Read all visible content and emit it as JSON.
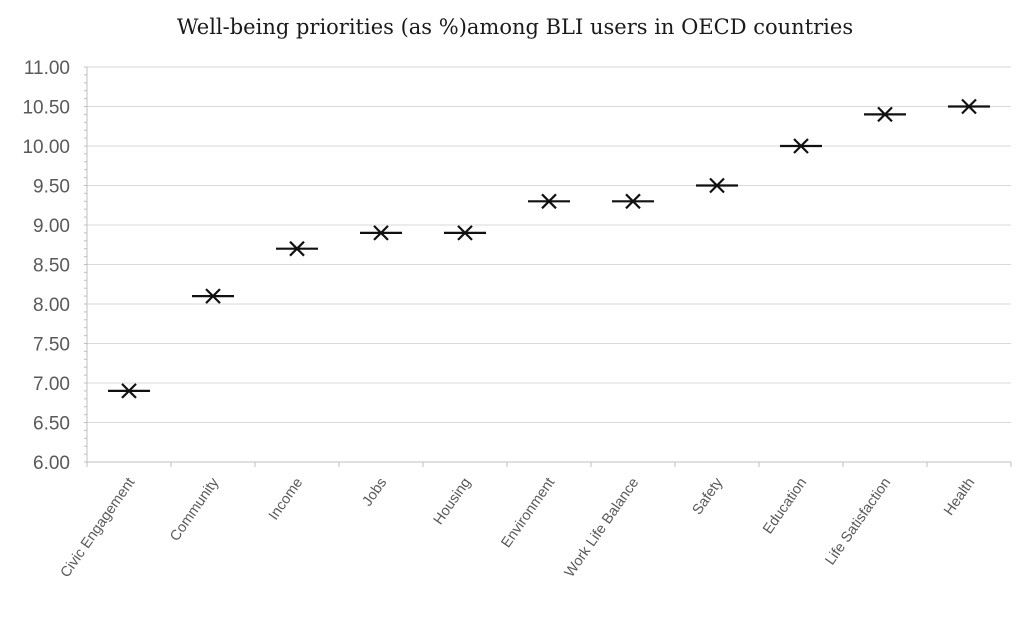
{
  "chart_data": {
    "type": "scatter",
    "title": "Well-being priorities (as %)among BLI users in OECD countries",
    "xlabel": "",
    "ylabel": "",
    "categories": [
      "Civic Engagement",
      "Community",
      "Income",
      "Jobs",
      "Housing",
      "Environment",
      "Work Life Balance",
      "Safety",
      "Education",
      "Life Satisfaction",
      "Health"
    ],
    "values": [
      6.9,
      8.1,
      8.7,
      8.9,
      8.9,
      9.3,
      9.3,
      9.5,
      10.0,
      10.4,
      10.5
    ],
    "ylim": [
      6.0,
      11.0
    ],
    "yticks": [
      "6.00",
      "6.50",
      "7.00",
      "7.50",
      "8.00",
      "8.50",
      "9.00",
      "9.50",
      "10.00",
      "10.50",
      "11.00"
    ],
    "grid": true,
    "marker": "x-with-dash",
    "colors": {
      "marker": "#111111",
      "grid": "#d9d9d9",
      "axis": "#bfbfbf",
      "text": "#595959"
    }
  }
}
